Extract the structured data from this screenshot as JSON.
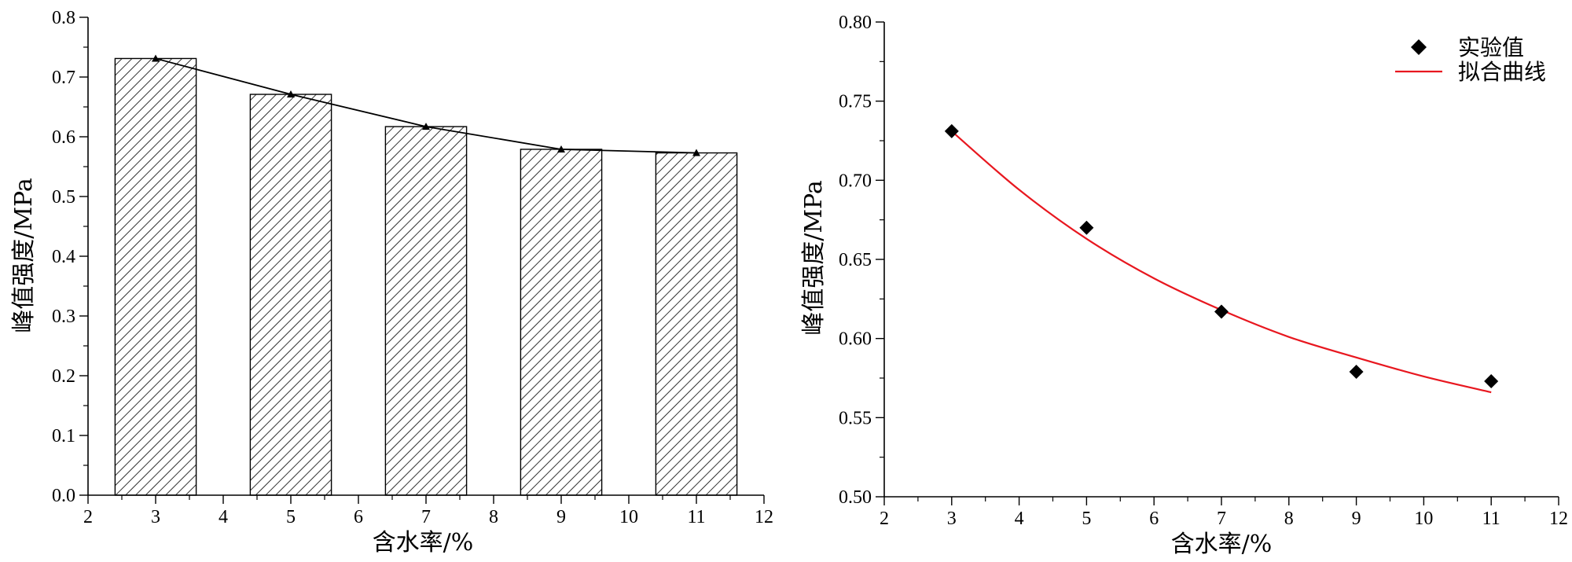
{
  "chart_data": [
    {
      "type": "bar",
      "categories": [
        "3",
        "5",
        "7",
        "9",
        "11"
      ],
      "x": [
        3,
        5,
        7,
        9,
        11
      ],
      "values": [
        0.731,
        0.671,
        0.617,
        0.579,
        0.573
      ],
      "line_overlay": true,
      "xlabel": "含水率/%",
      "ylabel": "峰值强度/MPa",
      "xlim": [
        2,
        12
      ],
      "ylim": [
        0.0,
        0.8
      ],
      "xticks": [
        "2",
        "3",
        "4",
        "5",
        "6",
        "7",
        "8",
        "9",
        "10",
        "11",
        "12"
      ],
      "yticks": [
        "0.0",
        "0.1",
        "0.2",
        "0.3",
        "0.4",
        "0.5",
        "0.6",
        "0.7",
        "0.8"
      ],
      "bar_fill": "hatched",
      "grid": false
    },
    {
      "type": "scatter",
      "series": [
        {
          "name": "实验值",
          "x": [
            3,
            5,
            7,
            9,
            11
          ],
          "values": [
            0.731,
            0.67,
            0.617,
            0.579,
            0.573
          ],
          "marker": "diamond",
          "color": "#000000"
        },
        {
          "name": "拟合曲线",
          "type": "line",
          "x": [
            3,
            4,
            5,
            6,
            7,
            8,
            9,
            10,
            11
          ],
          "values": [
            0.731,
            0.694,
            0.663,
            0.638,
            0.618,
            0.601,
            0.588,
            0.576,
            0.566
          ],
          "color": "#e8171f"
        }
      ],
      "xlabel": "含水率/%",
      "ylabel": "峰值强度/MPa",
      "xlim": [
        2,
        12
      ],
      "ylim": [
        0.5,
        0.8
      ],
      "xticks": [
        "2",
        "3",
        "4",
        "5",
        "6",
        "7",
        "8",
        "9",
        "10",
        "11",
        "12"
      ],
      "yticks": [
        "0.50",
        "0.55",
        "0.60",
        "0.65",
        "0.70",
        "0.75",
        "0.80"
      ],
      "legend_position": "top-right",
      "grid": false
    }
  ]
}
